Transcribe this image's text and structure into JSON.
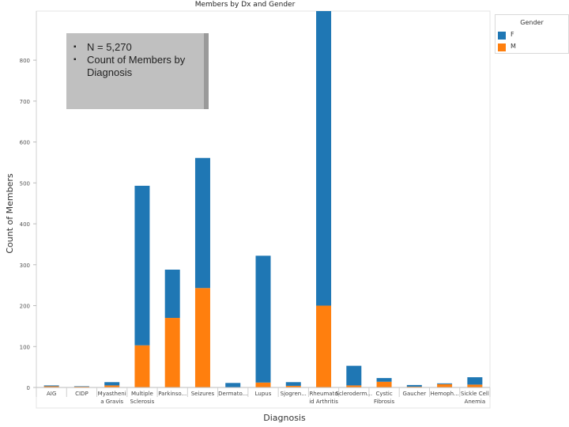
{
  "chart_data": {
    "type": "bar",
    "stacked": true,
    "title": "Members by Dx and Gender",
    "xlabel": "Diagnosis",
    "ylabel": "Count of Members",
    "ylim": [
      0,
      920
    ],
    "yticks": [
      0,
      100,
      200,
      300,
      400,
      500,
      600,
      700,
      800
    ],
    "ytick_labels": [
      "0",
      "100",
      "200",
      "300",
      "400",
      "500",
      "600",
      "700",
      "800"
    ],
    "categories": [
      [
        "AIG"
      ],
      [
        "CIDP"
      ],
      [
        "Myastheni",
        "a Gravis"
      ],
      [
        "Multiple",
        "Sclerosis"
      ],
      [
        "Parkinso..."
      ],
      [
        "Seizures"
      ],
      [
        "Dermato..."
      ],
      [
        "Lupus"
      ],
      [
        "Sjogren..."
      ],
      [
        "Rheumato",
        "id Arthritis"
      ],
      [
        "Scleroderm..."
      ],
      [
        "Cystic",
        "Fibrosis"
      ],
      [
        "Gaucher"
      ],
      [
        "Hemoph..."
      ],
      [
        "Sickle Cell",
        "Anemia"
      ]
    ],
    "series": [
      {
        "name": "M",
        "color": "#ff7f0e",
        "values": [
          3,
          2,
          5,
          103,
          170,
          243,
          0,
          12,
          4,
          200,
          5,
          14,
          2,
          8,
          7
        ]
      },
      {
        "name": "F",
        "color": "#1f77b4",
        "values": [
          2,
          1,
          8,
          390,
          118,
          318,
          11,
          310,
          9,
          720,
          48,
          9,
          4,
          2,
          18
        ]
      }
    ],
    "legend": {
      "title": "Gender",
      "placement": "right",
      "entries": [
        "F",
        "M"
      ]
    },
    "annotation": [
      "N = 5,270",
      "Count of Members by Diagnosis"
    ],
    "grid": false
  }
}
